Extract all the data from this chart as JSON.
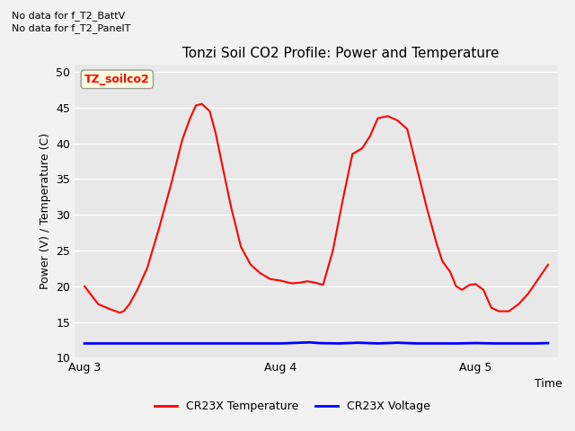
{
  "title": "Tonzi Soil CO2 Profile: Power and Temperature",
  "ylabel": "Power (V) / Temperature (C)",
  "xlabel": "Time",
  "ylim": [
    10,
    51
  ],
  "yticks": [
    10,
    15,
    20,
    25,
    30,
    35,
    40,
    45,
    50
  ],
  "no_data_text": [
    "No data for f_T2_BattV",
    "No data for f_T2_PanelT"
  ],
  "legend_label": "TZ_soilco2",
  "legend_entries": [
    "CR23X Temperature",
    "CR23X Voltage"
  ],
  "legend_colors": [
    "red",
    "blue"
  ],
  "bg_color": "#e8e8e8",
  "fig_bg": "#f2f2f2",
  "xtick_labels": [
    "Aug 3",
    "Aug 4",
    "Aug 5"
  ],
  "xtick_positions": [
    0.0,
    1.0,
    2.0
  ],
  "temp_color": "red",
  "volt_color": "blue",
  "temp_linewidth": 1.5,
  "volt_linewidth": 2.0,
  "temp_x": [
    0.0,
    0.07,
    0.13,
    0.18,
    0.2,
    0.23,
    0.27,
    0.32,
    0.38,
    0.44,
    0.5,
    0.54,
    0.57,
    0.6,
    0.64,
    0.67,
    0.7,
    0.75,
    0.8,
    0.85,
    0.9,
    0.95,
    1.0,
    1.03,
    1.06,
    1.1,
    1.14,
    1.18,
    1.22,
    1.27,
    1.32,
    1.37,
    1.42,
    1.46,
    1.5,
    1.55,
    1.6,
    1.65,
    1.7,
    1.75,
    1.8,
    1.83,
    1.87,
    1.9,
    1.93,
    1.97,
    2.0,
    2.04,
    2.08,
    2.12,
    2.17,
    2.22,
    2.27,
    2.32,
    2.37
  ],
  "temp_y": [
    20.0,
    17.5,
    16.8,
    16.3,
    16.5,
    17.5,
    19.5,
    22.5,
    28.0,
    34.0,
    40.5,
    43.5,
    45.3,
    45.5,
    44.5,
    41.5,
    37.5,
    31.0,
    25.5,
    23.0,
    21.8,
    21.0,
    20.8,
    20.6,
    20.4,
    20.5,
    20.7,
    20.5,
    20.2,
    25.0,
    32.0,
    38.5,
    39.3,
    41.0,
    43.5,
    43.8,
    43.2,
    42.0,
    36.5,
    31.0,
    26.0,
    23.5,
    22.0,
    20.0,
    19.5,
    20.2,
    20.3,
    19.5,
    17.0,
    16.5,
    16.5,
    17.5,
    19.0,
    21.0,
    23.0
  ],
  "volt_x": [
    0.0,
    0.2,
    0.4,
    0.6,
    0.8,
    0.95,
    1.0,
    1.1,
    1.15,
    1.2,
    1.3,
    1.4,
    1.5,
    1.6,
    1.7,
    1.8,
    1.9,
    2.0,
    2.1,
    2.2,
    2.3,
    2.37
  ],
  "volt_y": [
    12.0,
    12.0,
    12.0,
    12.0,
    12.0,
    12.0,
    12.0,
    12.1,
    12.15,
    12.05,
    12.0,
    12.1,
    12.0,
    12.1,
    12.0,
    12.0,
    12.0,
    12.05,
    12.0,
    12.0,
    12.0,
    12.05
  ]
}
